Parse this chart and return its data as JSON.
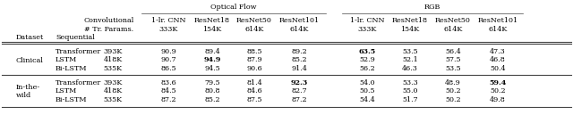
{
  "title_optical_flow": "Optical Flow",
  "title_rgb": "RGB",
  "col_headers_line1": [
    "Convolutional",
    "1-lr. CNN",
    "ResNet18",
    "ResNet50",
    "ResNet101",
    "1-lr. CNN",
    "ResNet18",
    "ResNet50",
    "ResNet101"
  ],
  "col_headers_line2": [
    "# Tr. Params.",
    "333K",
    "154K",
    "614K",
    "614K",
    "333K",
    "154K",
    "614K",
    "614K"
  ],
  "row_header1": "Dataset",
  "row_header2": "Sequential",
  "sections": [
    "Clinical",
    "In-the-\nwild"
  ],
  "section_rows": [
    [
      "Transformer",
      "LSTM",
      "Bi-LSTM"
    ],
    [
      "Transformer",
      "LSTM",
      "Bi-LSTM"
    ]
  ],
  "params": [
    [
      "393K",
      "418K",
      "535K"
    ],
    [
      "393K",
      "418K",
      "535K"
    ]
  ],
  "optical_flow_data": [
    [
      [
        90.9,
        89.4,
        88.5,
        89.2
      ],
      [
        90.7,
        94.9,
        87.9,
        85.2
      ],
      [
        86.5,
        94.5,
        90.6,
        91.4
      ]
    ],
    [
      [
        83.6,
        79.5,
        81.4,
        92.3
      ],
      [
        84.5,
        80.8,
        84.6,
        82.7
      ],
      [
        87.2,
        85.2,
        87.5,
        87.2
      ]
    ]
  ],
  "rgb_data": [
    [
      [
        63.5,
        53.5,
        56.4,
        47.3
      ],
      [
        52.9,
        52.1,
        57.5,
        46.8
      ],
      [
        56.2,
        46.3,
        53.5,
        50.4
      ]
    ],
    [
      [
        54.0,
        53.3,
        48.9,
        59.4
      ],
      [
        50.5,
        55.0,
        50.2,
        50.2
      ],
      [
        54.4,
        51.7,
        50.2,
        49.8
      ]
    ]
  ],
  "line_color": "#444444",
  "fontsize": 5.8,
  "font_family": "serif"
}
